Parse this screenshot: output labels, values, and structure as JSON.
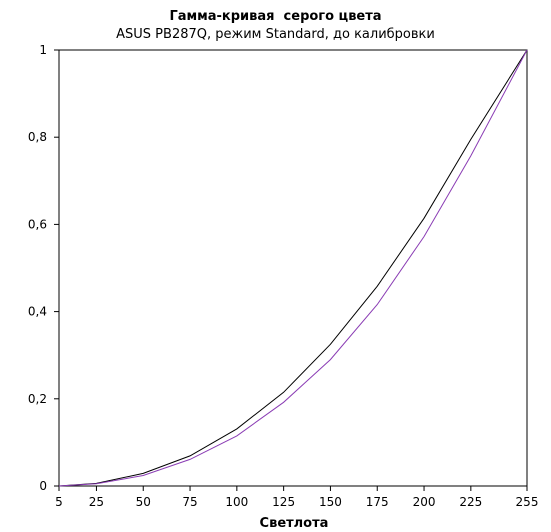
{
  "chart_data": {
    "type": "line",
    "title": "Гамма-кривая  серого цвета",
    "subtitle": "ASUS PB287Q, режим Standard, до калибровки",
    "xlabel": "Светлота",
    "ylabel": "",
    "x": [
      5,
      25,
      50,
      75,
      100,
      125,
      150,
      175,
      200,
      225,
      255
    ],
    "x_ticks": [
      "5",
      "25",
      "50",
      "75",
      "100",
      "125",
      "150",
      "175",
      "200",
      "225",
      "255"
    ],
    "y_ticks": [
      "0",
      "0,2",
      "0,4",
      "0,6",
      "0,8",
      "1"
    ],
    "xlim": [
      5,
      255
    ],
    "ylim": [
      0,
      1
    ],
    "grid": false,
    "legend": "none",
    "series": [
      {
        "color": "#000000",
        "values": [
          0.0,
          0.006,
          0.029,
          0.069,
          0.131,
          0.215,
          0.325,
          0.458,
          0.614,
          0.795,
          1.0
        ]
      },
      {
        "color": "#8a3cb4",
        "values": [
          0.0,
          0.005,
          0.024,
          0.061,
          0.115,
          0.192,
          0.29,
          0.416,
          0.572,
          0.757,
          1.0
        ]
      }
    ]
  }
}
